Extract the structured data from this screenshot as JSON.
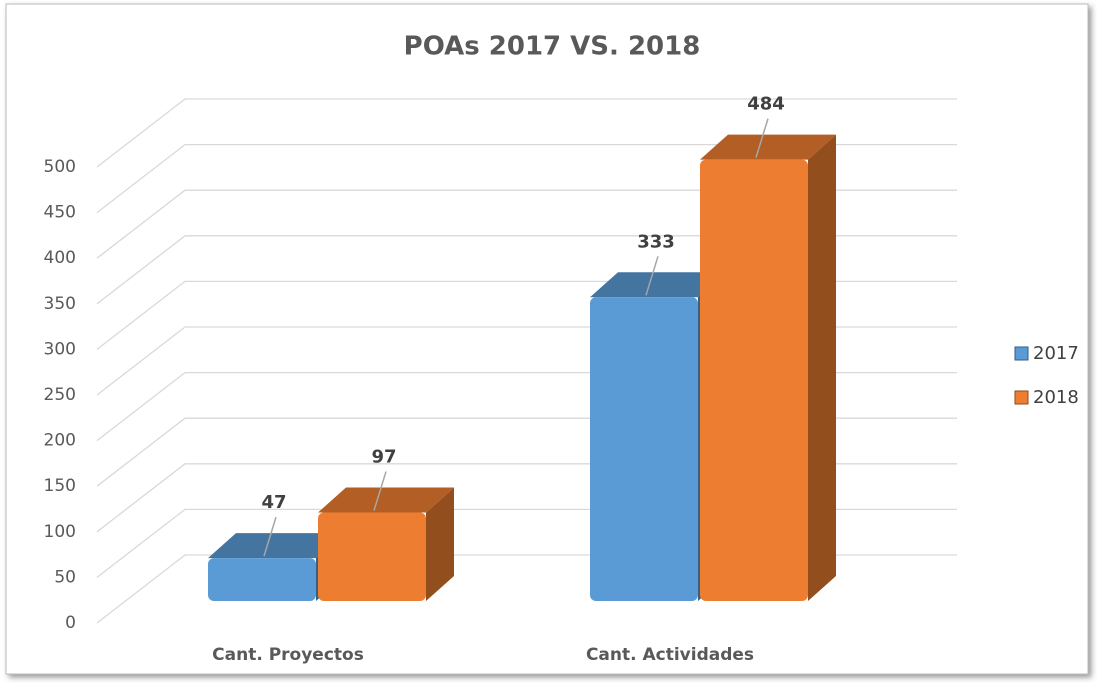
{
  "chart_data": {
    "type": "bar3d",
    "title": "POAs 2017 VS. 2018",
    "categories": [
      "Cant. Proyectos",
      "Cant. Actividades"
    ],
    "series": [
      {
        "name": "2017",
        "color": "#5b9bd5",
        "values": [
          47,
          333
        ]
      },
      {
        "name": "2018",
        "color": "#ed7d31",
        "values": [
          97,
          484
        ]
      }
    ],
    "ylim": [
      0,
      500
    ],
    "yticks": [
      0,
      50,
      100,
      150,
      200,
      250,
      300,
      350,
      400,
      450,
      500
    ],
    "grid": true,
    "legend": "right"
  }
}
